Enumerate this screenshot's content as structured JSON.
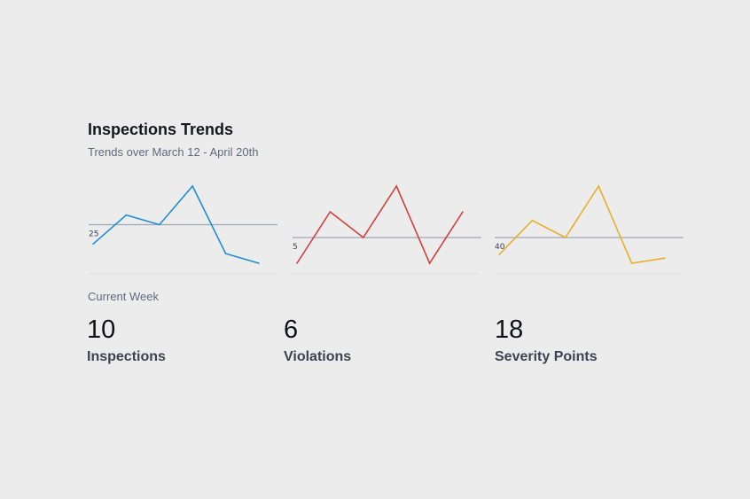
{
  "header": {
    "title": "Inspections Trends",
    "subtitle": "Trends over March 12 - April 20th"
  },
  "current_week_label": "Current Week",
  "colors": {
    "inspections": "#1d8fd1",
    "violations": "#d1413c",
    "severity": "#e7b02a",
    "reference_line": "#9ea6b4",
    "baseline": "#dcdcdc"
  },
  "chart_data": [
    {
      "type": "line",
      "series": [
        {
          "values": [
            21,
            27,
            25,
            33,
            19,
            17
          ]
        }
      ],
      "reference_line": {
        "value": 25,
        "label": "25"
      },
      "ylim": [
        17,
        33
      ],
      "grid": false
    },
    {
      "type": "line",
      "series": [
        {
          "values": [
            3,
            7,
            5,
            9,
            3,
            7
          ]
        }
      ],
      "reference_line": {
        "value": 5,
        "label": "5"
      },
      "ylim": [
        3,
        9
      ],
      "grid": false
    },
    {
      "type": "line",
      "series": [
        {
          "values": [
            30,
            50,
            40,
            70,
            25,
            28
          ]
        }
      ],
      "reference_line": {
        "value": 40,
        "label": "40"
      },
      "ylim": [
        25,
        70
      ],
      "grid": false
    }
  ],
  "stats": [
    {
      "value": "10",
      "label": "Inspections"
    },
    {
      "value": "6",
      "label": "Violations"
    },
    {
      "value": "18",
      "label": "Severity Points"
    }
  ]
}
